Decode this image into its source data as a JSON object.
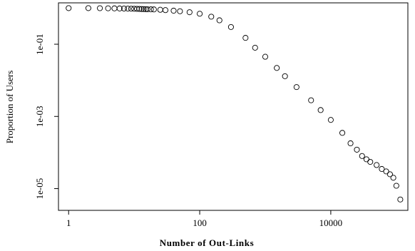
{
  "chart_data": {
    "type": "scatter",
    "title": "",
    "xlabel": "Number of Out-Links",
    "ylabel": "Proportion of Users",
    "x_scale": "log",
    "y_scale": "log",
    "xlim": [
      0.7,
      150000
    ],
    "ylim": [
      2.5e-06,
      1.4
    ],
    "grid": false,
    "legend": "none",
    "marker": "open-circle",
    "x_ticks": [
      {
        "value": 1,
        "label": "1"
      },
      {
        "value": 100,
        "label": "100"
      },
      {
        "value": 10000,
        "label": "10000"
      }
    ],
    "y_ticks": [
      {
        "value": 0.1,
        "label": "1e-01"
      },
      {
        "value": 0.001,
        "label": "1e-03"
      },
      {
        "value": 1e-05,
        "label": "1e-05"
      }
    ],
    "points": [
      [
        1,
        1.0
      ],
      [
        2,
        1.0
      ],
      [
        3,
        0.995
      ],
      [
        4,
        0.99
      ],
      [
        5,
        0.985
      ],
      [
        6,
        0.98
      ],
      [
        7,
        0.975
      ],
      [
        8,
        0.97
      ],
      [
        9,
        0.965
      ],
      [
        10,
        0.96
      ],
      [
        11,
        0.955
      ],
      [
        12,
        0.95
      ],
      [
        13,
        0.945
      ],
      [
        14,
        0.94
      ],
      [
        15,
        0.935
      ],
      [
        16,
        0.93
      ],
      [
        18,
        0.925
      ],
      [
        20,
        0.92
      ],
      [
        25,
        0.9
      ],
      [
        30,
        0.88
      ],
      [
        40,
        0.85
      ],
      [
        50,
        0.82
      ],
      [
        70,
        0.77
      ],
      [
        100,
        0.7
      ],
      [
        150,
        0.58
      ],
      [
        200,
        0.46
      ],
      [
        300,
        0.3
      ],
      [
        500,
        0.15
      ],
      [
        700,
        0.08
      ],
      [
        1000,
        0.045
      ],
      [
        1500,
        0.022
      ],
      [
        2000,
        0.013
      ],
      [
        3000,
        0.0065
      ],
      [
        5000,
        0.0028
      ],
      [
        7000,
        0.0015
      ],
      [
        10000,
        0.0008
      ],
      [
        15000,
        0.00035
      ],
      [
        20000,
        0.00018
      ],
      [
        25000,
        0.00012
      ],
      [
        30000,
        8e-05
      ],
      [
        35000,
        6.5e-05
      ],
      [
        40000,
        5.5e-05
      ],
      [
        50000,
        4.5e-05
      ],
      [
        60000,
        3.5e-05
      ],
      [
        70000,
        3e-05
      ],
      [
        80000,
        2.5e-05
      ],
      [
        90000,
        2e-05
      ],
      [
        100000,
        1.2e-05
      ],
      [
        115000,
        5e-06
      ]
    ]
  }
}
